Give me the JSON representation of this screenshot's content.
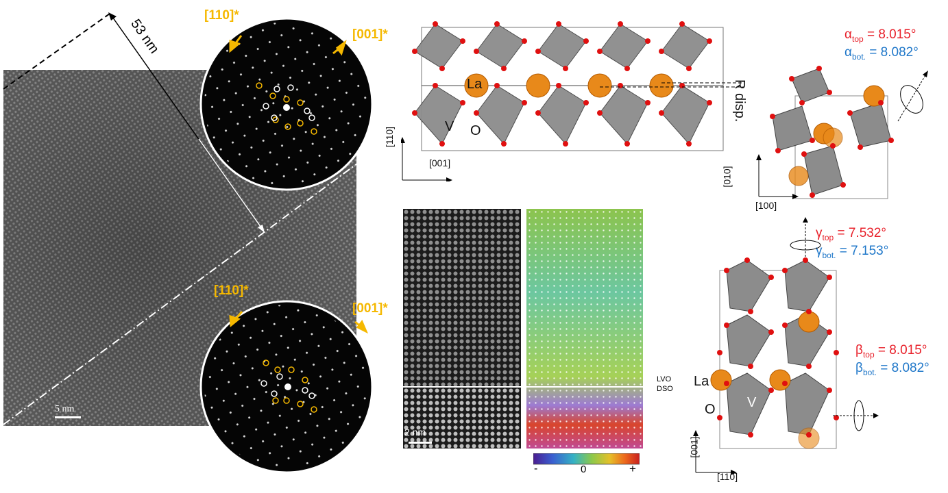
{
  "tem": {
    "distance_label": "53 nm",
    "scale_bar": "5 nm",
    "top_inset": {
      "label_110": "[110]*",
      "label_001": "[001]*"
    },
    "bottom_inset": {
      "label_110": "[110]*",
      "label_001": "[001]*"
    }
  },
  "structure_top": {
    "atom_la": "La",
    "atom_v": "V",
    "atom_o": "O",
    "r_disp": "R disp.",
    "axis_vertical": "[110]",
    "axis_horizontal": "[001]"
  },
  "structure_right_top": {
    "alpha_top_symbol": "α",
    "alpha_top_sub": "top",
    "alpha_top_value": "= 8.015°",
    "alpha_bot_symbol": "α",
    "alpha_bot_sub": "bot.",
    "alpha_bot_value": "= 8.082°",
    "axis_vertical": "[010]",
    "axis_horizontal": "[100]"
  },
  "stem": {
    "scale_bar": "2 nm",
    "interface_top": "LVO",
    "interface_bottom": "DSO",
    "colorbar": {
      "min": "-",
      "mid": "0",
      "max": "+"
    }
  },
  "structure_right_bottom": {
    "gamma_top_symbol": "γ",
    "gamma_top_sub": "top",
    "gamma_top_value": "= 7.532°",
    "gamma_bot_symbol": "γ",
    "gamma_bot_sub": "bot.",
    "gamma_bot_value": "= 7.153°",
    "beta_top_symbol": "β",
    "beta_top_sub": "top",
    "beta_top_value": "= 8.015°",
    "beta_bot_symbol": "β",
    "beta_bot_sub": "bot.",
    "beta_bot_value": "= 8.082°",
    "atom_la": "La",
    "atom_v": "V",
    "atom_o": "O",
    "axis_vertical": "[001]",
    "axis_horizontal": "[110]"
  },
  "colors": {
    "accent_yellow": "#f5b800",
    "top_red": "#e8202a",
    "bot_blue": "#1f77c9",
    "la_orange": "#e8891a"
  }
}
